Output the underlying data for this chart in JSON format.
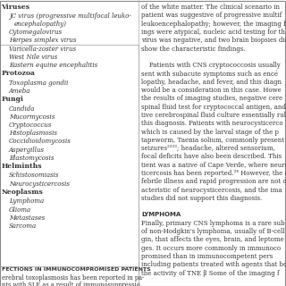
{
  "background_color": "#ffffff",
  "border_color": "#000000",
  "left_panel": {
    "categories": [
      {
        "name": "Viruses",
        "items": [
          "JC virus (progressive multifocal leuko-\nencephalopathy)",
          "Cytomegalovirus",
          "Herpes simplex virus",
          "Varicella-zoster virus",
          "West Nile virus",
          "Eastern equine encephalitis"
        ]
      },
      {
        "name": "Protozoa",
        "items": [
          "Toxoplasma gondii",
          "Ameba"
        ]
      },
      {
        "name": "Fungi",
        "items": [
          "Candida",
          "Mucormycosis",
          "Cryptococcus",
          "Histoplasmosis",
          "Coccidioidomycosis",
          "Aspergillus",
          "Blastomycosis"
        ]
      },
      {
        "name": "Helminths",
        "items": [
          "Schistosomiasis",
          "Neurocysticercosis"
        ]
      },
      {
        "name": "Neoplasms",
        "items": [
          "Lymphoma",
          "Glioma",
          "Metastases",
          "Sarcoma"
        ]
      }
    ],
    "footer_heading": "FECTIONS IN IMMUNOCOMPROMISED PATIENTS",
    "footer_body": "erebral toxoplasmosis has been reported in pa-\nnts with SLE as a result of immunosuppressio"
  },
  "right_panel": {
    "lines": [
      {
        "text": "of the white matter. The clinical scenario in",
        "style": "normal"
      },
      {
        "text": "patient was suggestive of progressive multif",
        "style": "normal"
      },
      {
        "text": "leukoencephalopathy; however, the imaging fi",
        "style": "normal"
      },
      {
        "text": "ings were atypical, nucleic acid testing for th",
        "style": "normal"
      },
      {
        "text": "virus was negative, and two brain biopsies dic",
        "style": "normal"
      },
      {
        "text": "show the characteristic findings.",
        "style": "normal"
      },
      {
        "text": "",
        "style": "normal"
      },
      {
        "text": "    Patients with CNS cryptococcosis usually",
        "style": "normal"
      },
      {
        "text": "sent with subacute symptoms such as encé",
        "style": "normal"
      },
      {
        "text": "lopathy, headache, and fever, and this diagn",
        "style": "normal"
      },
      {
        "text": "would be a consideration in this case. Howe",
        "style": "normal"
      },
      {
        "text": "the results of imaging studies, negative cere",
        "style": "normal"
      },
      {
        "text": "spinal fluid test for cryptococcal antigen, and n",
        "style": "normal"
      },
      {
        "text": "tive cerebrospinal fluid culture essentially rule",
        "style": "normal"
      },
      {
        "text": "this diagnosis. Patients with neurocysticerco",
        "style": "normal"
      },
      {
        "text": "which is caused by the larval stage of the p",
        "style": "normal"
      },
      {
        "text": "tapeworm, Taenia solium, commonly present w",
        "style": "normal"
      },
      {
        "text": "seizures²²²³; headache, altered sensorium,",
        "style": "normal"
      },
      {
        "text": "focal deficits have also been described. This",
        "style": "normal"
      },
      {
        "text": "tient was a native of Cape Verde, where neuro",
        "style": "normal"
      },
      {
        "text": "ticercosis has been reported.²⁴ However, the a",
        "style": "normal"
      },
      {
        "text": "febrile illness and rapid progression are not c",
        "style": "normal"
      },
      {
        "text": "acteristic of neurocysticercosis, and the ima",
        "style": "normal"
      },
      {
        "text": "studies did not support this diagnosis.",
        "style": "normal"
      },
      {
        "text": "",
        "style": "normal"
      },
      {
        "text": "LYMPHOMA",
        "style": "heading"
      },
      {
        "text": "Finally, primary CNS lymphoma is a rare sub",
        "style": "normal"
      },
      {
        "text": "of non-Hodgkin's lymphoma, usually of B-cell",
        "style": "normal"
      },
      {
        "text": "gin, that affects the eyes, brain, and leptome",
        "style": "normal"
      },
      {
        "text": "ges. It occurs more commonly in immunoco",
        "style": "normal"
      },
      {
        "text": "promised than in immunocompetent pers",
        "style": "normal"
      },
      {
        "text": "including patients treated with agents that bo",
        "style": "normal"
      },
      {
        "text": "the activity of TNE β Some of the imaging f",
        "style": "normal"
      }
    ]
  },
  "text_color": "#333333",
  "figsize": [
    3.2,
    3.2
  ],
  "dpi": 100
}
